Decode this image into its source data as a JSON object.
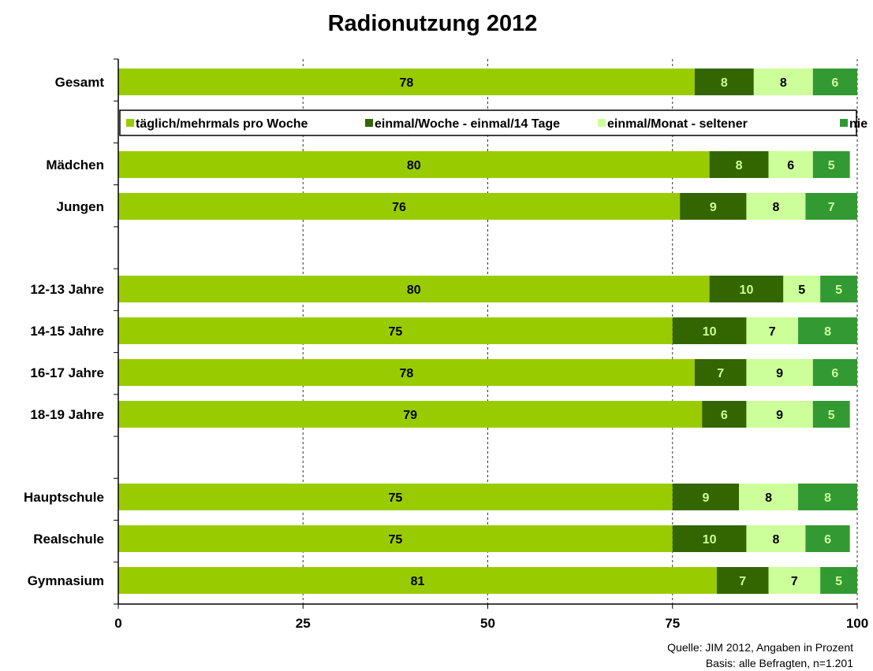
{
  "chart_data": {
    "type": "bar",
    "orientation": "horizontal",
    "stacked": true,
    "title": "Radionutzung 2012",
    "xlim": [
      0,
      100
    ],
    "x_ticks": [
      "0",
      "25",
      "50",
      "75",
      "100"
    ],
    "grid": "vertical dashed",
    "legend": {
      "placement": "top, below Gesamt",
      "entries": [
        "täglich/mehrmals pro Woche",
        "einmal/Woche - einmal/14 Tage",
        "einmal/Monat - seltener",
        "nie"
      ]
    },
    "series": [
      {
        "name": "täglich/mehrmals pro Woche",
        "color": "#99cc00"
      },
      {
        "name": "einmal/Woche - einmal/14 Tage",
        "color": "#336600"
      },
      {
        "name": "einmal/Monat - seltener",
        "color": "#ccff99"
      },
      {
        "name": "nie",
        "color": "#339933"
      }
    ],
    "rows": [
      {
        "label": "Gesamt",
        "values": [
          78,
          8,
          8,
          6
        ]
      },
      {
        "label": "Mädchen",
        "values": [
          80,
          8,
          6,
          5
        ]
      },
      {
        "label": "Jungen",
        "values": [
          76,
          9,
          8,
          7
        ]
      },
      {
        "label": "12-13 Jahre",
        "values": [
          80,
          10,
          5,
          5
        ]
      },
      {
        "label": "14-15 Jahre",
        "values": [
          75,
          10,
          7,
          8
        ]
      },
      {
        "label": "16-17 Jahre",
        "values": [
          78,
          7,
          9,
          6
        ]
      },
      {
        "label": "18-19 Jahre",
        "values": [
          79,
          6,
          9,
          5
        ]
      },
      {
        "label": "Hauptschule",
        "values": [
          75,
          9,
          8,
          8
        ]
      },
      {
        "label": "Realschule",
        "values": [
          75,
          10,
          8,
          6
        ]
      },
      {
        "label": "Gymnasium",
        "values": [
          81,
          7,
          7,
          5
        ]
      }
    ]
  },
  "source": {
    "line1": "Quelle: JIM 2012, Angaben in Prozent",
    "line2": "Basis: alle Befragten, n=1.201"
  }
}
